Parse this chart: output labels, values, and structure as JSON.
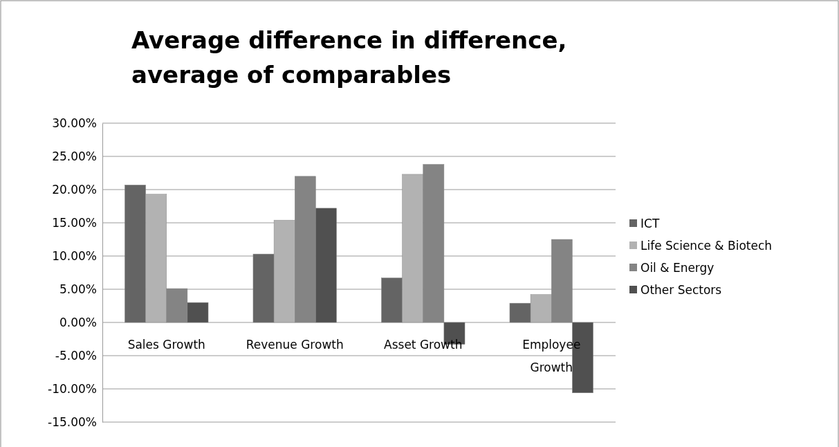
{
  "chart_data": {
    "type": "bar",
    "title": "Average difference in difference, average of comparables",
    "categories": [
      "Sales Growth",
      "Revenue Growth",
      "Asset Growth",
      "Employee Growth"
    ],
    "series": [
      {
        "name": "ICT",
        "color": "#646464",
        "values": [
          20.7,
          10.3,
          6.7,
          2.9
        ]
      },
      {
        "name": "Life Science & Biotech",
        "color": "#b2b2b2",
        "values": [
          19.3,
          15.4,
          22.3,
          4.2
        ]
      },
      {
        "name": "Oil & Energy",
        "color": "#848484",
        "values": [
          5.1,
          22.0,
          23.8,
          12.5
        ]
      },
      {
        "name": "Other Sectors",
        "color": "#505050",
        "values": [
          3.0,
          17.2,
          -3.3,
          -10.6
        ]
      }
    ],
    "ylim": [
      -15,
      30
    ],
    "yticks": [
      {
        "value": -15,
        "label": "-15.00%"
      },
      {
        "value": -10,
        "label": "-10.00%"
      },
      {
        "value": -5,
        "label": "-5.00%"
      },
      {
        "value": 0,
        "label": "0.00%"
      },
      {
        "value": 5,
        "label": "5.00%"
      },
      {
        "value": 10,
        "label": "10.00%"
      },
      {
        "value": 15,
        "label": "15.00%"
      },
      {
        "value": 20,
        "label": "20.00%"
      },
      {
        "value": 25,
        "label": "25.00%"
      },
      {
        "value": 30,
        "label": "30.00%"
      }
    ],
    "grid": "y",
    "legend": "right"
  }
}
